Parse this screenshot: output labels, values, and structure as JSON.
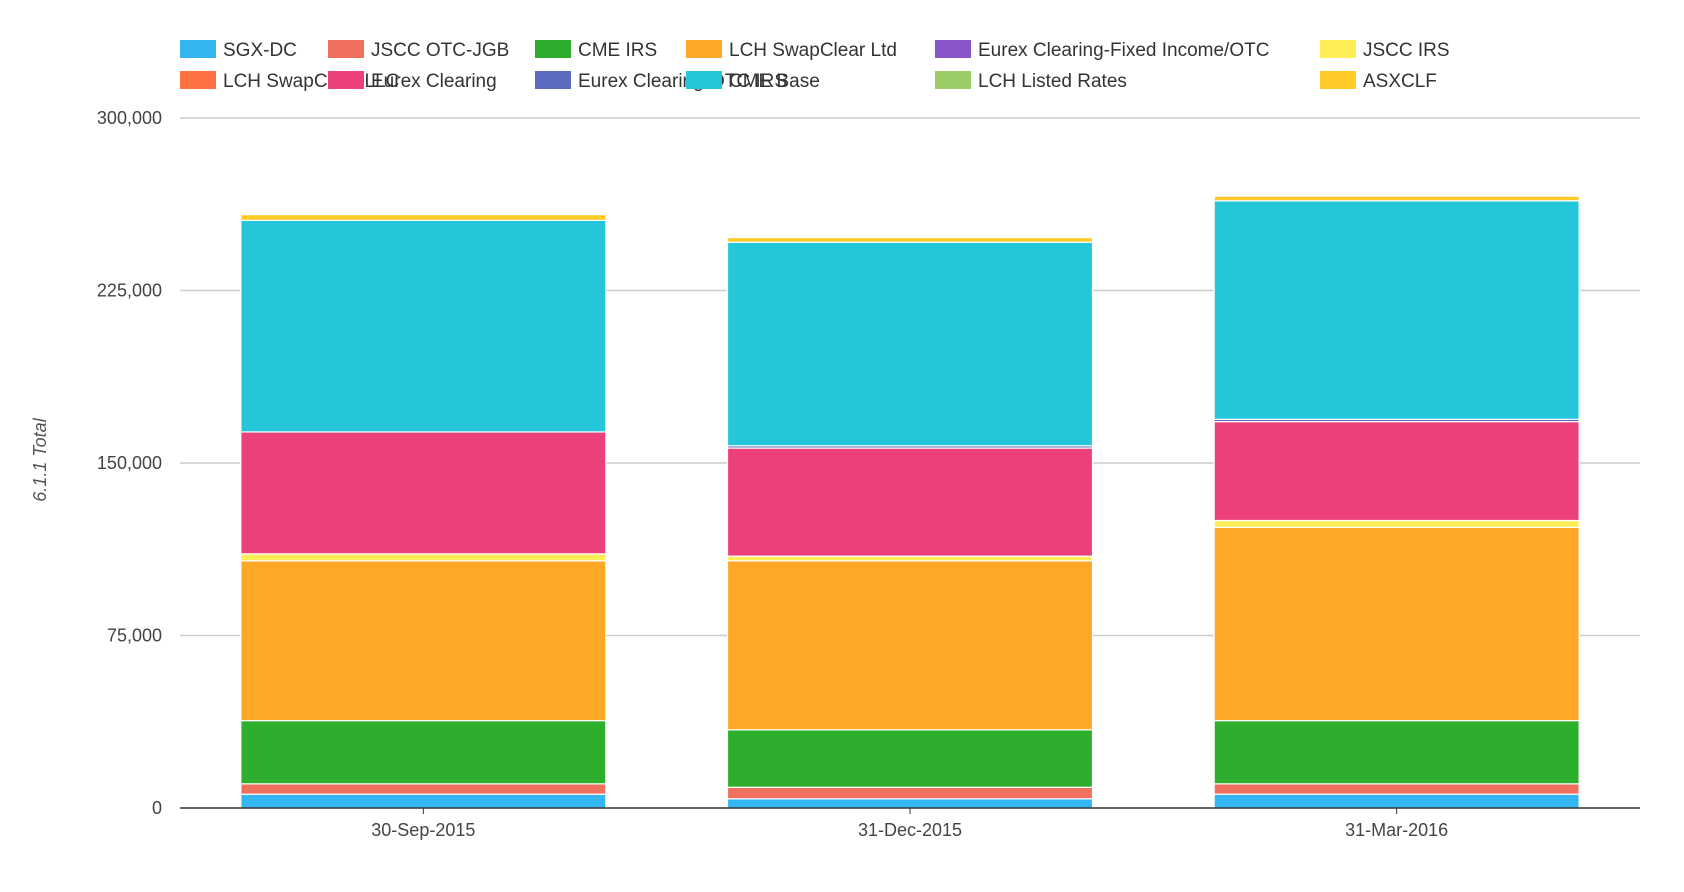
{
  "chart_data": {
    "type": "bar",
    "stacked": true,
    "categories": [
      "30-Sep-2015",
      "31-Dec-2015",
      "31-Mar-2016"
    ],
    "ylabel": "6.1.1 Total",
    "xlabel": "",
    "title": "",
    "ylim": [
      0,
      300000
    ],
    "yticks": [
      0,
      75000,
      150000,
      225000,
      300000
    ],
    "ytick_labels": [
      "0",
      "75,000",
      "150,000",
      "225,000",
      "300,000"
    ],
    "grid": true,
    "legend_position": "top",
    "series": [
      {
        "name": "SGX-DC",
        "color": "#33b6f2",
        "values": [
          6000,
          4000,
          6000
        ]
      },
      {
        "name": "JSCC OTC-JGB",
        "color": "#f07060",
        "values": [
          4500,
          5000,
          4500
        ]
      },
      {
        "name": "CME IRS",
        "color": "#2daf2d",
        "values": [
          27500,
          25000,
          27500
        ]
      },
      {
        "name": "LCH SwapClear Ltd",
        "color": "#ffa726",
        "values": [
          69500,
          73500,
          84000
        ]
      },
      {
        "name": "Eurex Clearing-Fixed Income/OTC",
        "color": "#8a55c8",
        "values": [
          0,
          0,
          0
        ]
      },
      {
        "name": "JSCC IRS",
        "color": "#ffee58",
        "values": [
          3000,
          2000,
          3000
        ]
      },
      {
        "name": "LCH SwapClear LLC",
        "color": "#ff7043",
        "values": [
          0,
          0,
          0
        ]
      },
      {
        "name": "Eurex Clearing",
        "color": "#ec407a",
        "values": [
          53000,
          47000,
          43000
        ]
      },
      {
        "name": "Eurex Clearing-OTC IRS",
        "color": "#5c6bc0",
        "values": [
          0,
          1000,
          1000
        ]
      },
      {
        "name": "CME Base",
        "color": "#26c6da",
        "values": [
          92000,
          88500,
          95000
        ]
      },
      {
        "name": "LCH Listed Rates",
        "color": "#9ccc65",
        "values": [
          0,
          0,
          0
        ]
      },
      {
        "name": "ASXCLF",
        "color": "#ffca28",
        "values": [
          2500,
          2000,
          2000
        ]
      }
    ]
  }
}
